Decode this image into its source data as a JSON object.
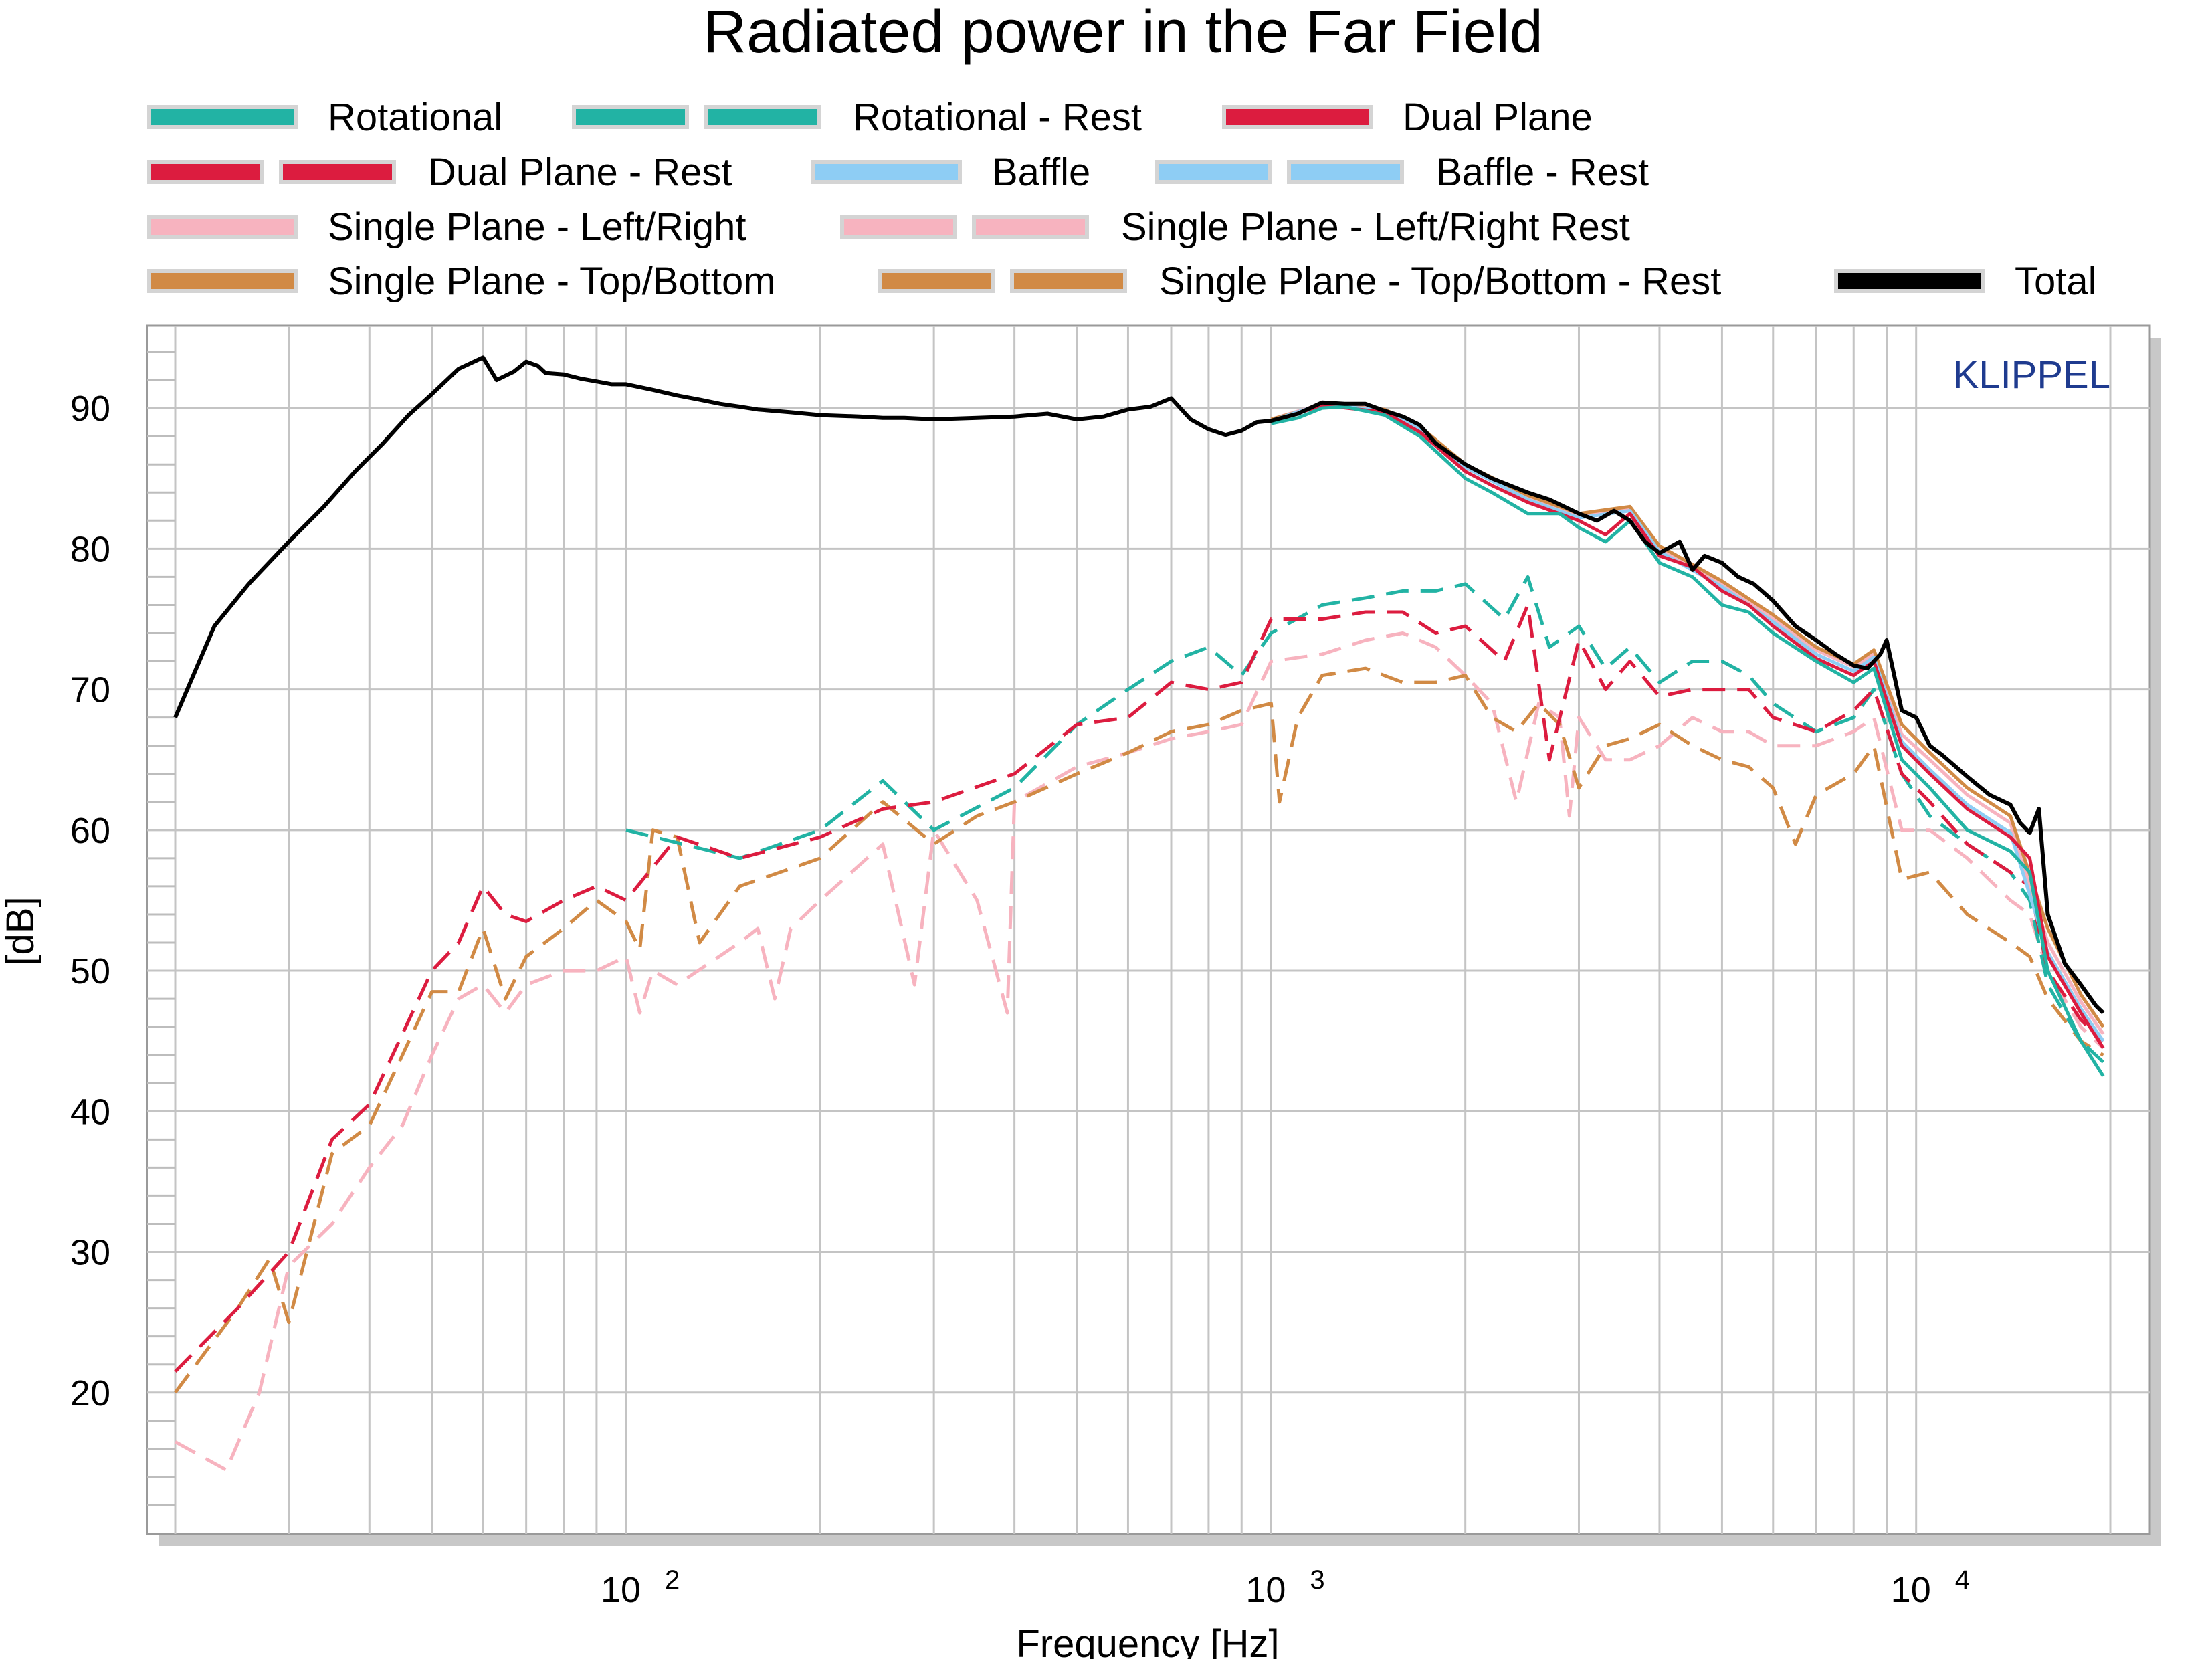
{
  "chart_data": {
    "type": "line",
    "title": "Radiated power in the Far Field",
    "xlabel": "Frequency [Hz]",
    "ylabel": "[dB]",
    "x_scale": "log",
    "xlim": [
      20,
      20000
    ],
    "ylim": [
      10,
      95
    ],
    "y_ticks": [
      20,
      30,
      40,
      50,
      60,
      70,
      80,
      90
    ],
    "x_ticks": [
      {
        "value": 100,
        "base": "10",
        "exp": "2"
      },
      {
        "value": 1000,
        "base": "10",
        "exp": "3"
      },
      {
        "value": 10000,
        "base": "10",
        "exp": "4"
      }
    ],
    "grid": true,
    "legend_placement": "top",
    "brand": "KLIPPEL",
    "brand_color": "#1f3b8f",
    "series": [
      {
        "name": "Rotational",
        "color": "#22b3a4",
        "dashed": false,
        "style": "double-swatch-none",
        "x": [
          1000,
          1100,
          1200,
          1300,
          1500,
          1700,
          2000,
          2200,
          2500,
          2800,
          3000,
          3300,
          3600,
          4000,
          4500,
          5000,
          5500,
          6000,
          7000,
          8000,
          8600,
          9500,
          10500,
          12000,
          14000,
          15000,
          16000,
          18000,
          19500
        ],
        "y": [
          88.9,
          89.3,
          90.0,
          90.1,
          89.5,
          88.0,
          85.0,
          84.0,
          82.5,
          82.5,
          81.5,
          80.5,
          82.0,
          79.0,
          78.0,
          76.0,
          75.5,
          74.0,
          72.0,
          70.5,
          71.5,
          65.0,
          63.0,
          60.0,
          58.5,
          57.0,
          50.0,
          45.0,
          42.5
        ]
      },
      {
        "name": "Rotational - Rest",
        "color": "#22b3a4",
        "dashed": true,
        "x": [
          100,
          150,
          200,
          250,
          300,
          400,
          500,
          600,
          700,
          800,
          900,
          1000,
          1200,
          1400,
          1600,
          1800,
          2000,
          2300,
          2500,
          2700,
          3000,
          3300,
          3600,
          4000,
          4500,
          5000,
          5500,
          6000,
          7000,
          8000,
          8600,
          9500,
          10500,
          12000,
          14000,
          15000,
          16000,
          18000,
          19500
        ],
        "y": [
          60.0,
          58.0,
          60.0,
          63.5,
          60.0,
          63.0,
          67.5,
          70.0,
          72.0,
          73.0,
          71.0,
          74.0,
          76.0,
          76.5,
          77.0,
          77.0,
          77.5,
          75.0,
          78.0,
          73.0,
          74.5,
          71.5,
          73.0,
          70.5,
          72.0,
          72.0,
          71.0,
          69.0,
          67.0,
          68.0,
          70.0,
          64.0,
          61.0,
          59.0,
          57.0,
          55.0,
          49.0,
          45.0,
          43.5
        ]
      },
      {
        "name": "Dual Plane",
        "color": "#dc1c3f",
        "dashed": false,
        "x": [
          1000,
          1200,
          1500,
          1700,
          2000,
          2200,
          2500,
          3000,
          3300,
          3600,
          4000,
          4500,
          5000,
          5500,
          6000,
          7000,
          8000,
          8600,
          9500,
          10500,
          12000,
          14000,
          15000,
          16000,
          18000,
          19500
        ],
        "y": [
          89.0,
          90.2,
          89.7,
          88.3,
          85.5,
          84.5,
          83.3,
          82.0,
          81.0,
          82.5,
          79.5,
          78.7,
          77.0,
          76.0,
          74.5,
          72.2,
          71.0,
          72.0,
          66.0,
          64.0,
          61.5,
          59.5,
          58.0,
          51.0,
          47.0,
          44.5
        ]
      },
      {
        "name": "Dual Plane - Rest",
        "color": "#dc1c3f",
        "dashed": true,
        "x": [
          20,
          25,
          30,
          35,
          40,
          45,
          50,
          55,
          60,
          65,
          70,
          80,
          90,
          100,
          120,
          150,
          200,
          250,
          300,
          400,
          500,
          600,
          700,
          800,
          900,
          1000,
          1200,
          1400,
          1600,
          1800,
          2000,
          2300,
          2500,
          2700,
          3000,
          3300,
          3600,
          4000,
          4500,
          5000,
          5500,
          6000,
          7000,
          8000,
          8600,
          9500,
          10500,
          12000,
          14000,
          15000,
          16000,
          18000,
          19500
        ],
        "y": [
          21.5,
          26.0,
          30.0,
          38.0,
          40.5,
          45.5,
          50.0,
          52.0,
          56.0,
          54.0,
          53.5,
          55.0,
          56.0,
          55.0,
          59.5,
          58.0,
          59.5,
          61.5,
          62.0,
          64.0,
          67.5,
          68.0,
          70.5,
          70.0,
          70.5,
          75.0,
          75.0,
          75.5,
          75.5,
          74.0,
          74.5,
          72.0,
          76.0,
          65.0,
          73.5,
          70.0,
          72.0,
          69.5,
          70.0,
          70.0,
          70.0,
          68.0,
          67.0,
          68.5,
          70.0,
          64.0,
          62.0,
          59.0,
          57.0,
          56.0,
          50.0,
          46.5,
          45.0
        ]
      },
      {
        "name": "Baffle",
        "color": "#8ecdf4",
        "dashed": false,
        "x": [
          1000,
          1200,
          1500,
          1700,
          2000,
          2500,
          3000,
          3600,
          4000,
          5000,
          6000,
          7000,
          8000,
          8600,
          9500,
          10500,
          12000,
          14000,
          16000,
          18000,
          19500
        ],
        "y": [
          89.1,
          90.3,
          89.8,
          88.5,
          85.8,
          83.5,
          82.2,
          82.7,
          79.8,
          77.3,
          74.8,
          72.5,
          71.3,
          72.3,
          66.3,
          64.3,
          61.8,
          59.8,
          51.3,
          47.3,
          45.0
        ]
      },
      {
        "name": "Baffle - Rest",
        "color": "#8ecdf4",
        "dashed": true,
        "x": [],
        "y": []
      },
      {
        "name": "Single Plane - Left/Right",
        "color": "#f7b3bf",
        "dashed": false,
        "x": [
          1000,
          1200,
          1500,
          1700,
          2000,
          2500,
          3000,
          3600,
          4000,
          5000,
          6000,
          7000,
          8000,
          8600,
          9500,
          10500,
          12000,
          14000,
          16000,
          18000,
          19500
        ],
        "y": [
          89.2,
          90.3,
          89.9,
          88.6,
          85.9,
          83.7,
          82.4,
          82.9,
          80.0,
          77.5,
          75.0,
          72.8,
          71.6,
          72.5,
          66.8,
          65.0,
          62.5,
          60.5,
          52.0,
          47.8,
          45.5
        ]
      },
      {
        "name": "Single Plane - Left/Right Rest",
        "color": "#f7b3bf",
        "dashed": true,
        "x": [
          20,
          24,
          27,
          30,
          35,
          40,
          45,
          50,
          55,
          60,
          65,
          70,
          80,
          90,
          100,
          105,
          110,
          120,
          150,
          160,
          170,
          180,
          200,
          250,
          280,
          300,
          350,
          390,
          400,
          500,
          600,
          700,
          800,
          900,
          1000,
          1200,
          1400,
          1600,
          1800,
          2000,
          2200,
          2400,
          2600,
          2800,
          2900,
          3000,
          3300,
          3600,
          4000,
          4500,
          5000,
          5500,
          6000,
          7000,
          8000,
          8600,
          9500,
          10500,
          12000,
          14000,
          15000,
          16000,
          18000,
          19500
        ],
        "y": [
          16.5,
          14.5,
          20.0,
          29.0,
          32.0,
          36.0,
          39.0,
          44.0,
          48.0,
          49.0,
          47.0,
          49.0,
          50.0,
          50.0,
          51.0,
          47.0,
          50.0,
          49.0,
          52.0,
          53.0,
          48.0,
          53.0,
          55.0,
          59.0,
          49.0,
          60.0,
          55.0,
          47.0,
          62.0,
          64.5,
          65.5,
          66.5,
          67.0,
          67.5,
          72.0,
          72.5,
          73.5,
          74.0,
          73.0,
          71.0,
          69.0,
          62.0,
          69.0,
          68.0,
          61.0,
          68.0,
          65.0,
          65.0,
          66.0,
          68.0,
          67.0,
          67.0,
          66.0,
          66.0,
          67.0,
          68.0,
          60.0,
          60.0,
          58.0,
          55.0,
          54.0,
          50.0,
          46.0,
          44.5
        ]
      },
      {
        "name": "Single Plane - Top/Bottom",
        "color": "#d18a45",
        "dashed": false,
        "x": [
          1000,
          1200,
          1500,
          1700,
          2000,
          2500,
          3000,
          3600,
          4000,
          5000,
          6000,
          7000,
          8000,
          8600,
          9500,
          10500,
          12000,
          14000,
          16000,
          18000,
          19500
        ],
        "y": [
          89.2,
          90.2,
          89.9,
          88.7,
          86.0,
          83.8,
          82.5,
          83.0,
          80.2,
          77.7,
          75.3,
          73.0,
          71.8,
          72.8,
          67.5,
          65.5,
          63.0,
          61.0,
          53.0,
          48.3,
          46.0
        ]
      },
      {
        "name": "Single Plane - Top/Bottom - Rest",
        "color": "#d18a45",
        "dashed": true,
        "x": [
          20,
          25,
          28,
          30,
          35,
          40,
          45,
          50,
          55,
          60,
          65,
          70,
          80,
          90,
          100,
          105,
          110,
          120,
          130,
          150,
          200,
          250,
          300,
          350,
          400,
          500,
          600,
          700,
          800,
          900,
          1000,
          1030,
          1100,
          1200,
          1400,
          1600,
          1800,
          2000,
          2200,
          2400,
          2600,
          2800,
          3000,
          3300,
          3600,
          4000,
          4500,
          5000,
          5500,
          6000,
          6500,
          7000,
          8000,
          8600,
          9500,
          10500,
          12000,
          14000,
          15000,
          16000,
          18000,
          19500
        ],
        "y": [
          20.0,
          26.0,
          29.5,
          25.0,
          37.0,
          39.0,
          44.0,
          48.5,
          48.5,
          53.0,
          48.0,
          51.0,
          53.0,
          55.0,
          53.5,
          51.5,
          60.0,
          59.5,
          52.0,
          56.0,
          58.0,
          62.0,
          59.0,
          61.0,
          62.0,
          64.0,
          65.5,
          67.0,
          67.5,
          68.5,
          69.0,
          62.0,
          68.0,
          71.0,
          71.5,
          70.5,
          70.5,
          71.0,
          68.0,
          67.0,
          69.0,
          67.5,
          63.0,
          66.0,
          66.5,
          67.5,
          66.0,
          65.0,
          64.5,
          63.0,
          59.0,
          62.5,
          64.0,
          66.0,
          56.5,
          57.0,
          54.0,
          52.0,
          51.0,
          48.0,
          45.0,
          44.0
        ]
      },
      {
        "name": "Total",
        "color": "#000000",
        "dashed": false,
        "x": [
          20,
          23,
          26,
          30,
          34,
          38,
          42,
          46,
          50,
          55,
          60,
          63,
          67,
          70,
          73,
          75,
          80,
          85,
          90,
          95,
          100,
          110,
          120,
          130,
          140,
          150,
          160,
          180,
          200,
          230,
          250,
          270,
          300,
          350,
          400,
          450,
          500,
          550,
          600,
          650,
          700,
          750,
          800,
          850,
          900,
          950,
          1000,
          1100,
          1200,
          1300,
          1400,
          1500,
          1600,
          1700,
          1800,
          2000,
          2200,
          2500,
          2700,
          3000,
          3200,
          3400,
          3600,
          3800,
          4000,
          4300,
          4500,
          4700,
          5000,
          5300,
          5600,
          6000,
          6500,
          7000,
          7500,
          8000,
          8400,
          8600,
          8800,
          9000,
          9500,
          10000,
          10500,
          11000,
          12000,
          13000,
          14000,
          14500,
          15000,
          15500,
          16000,
          17000,
          18000,
          19000,
          19500
        ],
        "y": [
          68.0,
          74.5,
          77.5,
          80.5,
          83.0,
          85.5,
          87.5,
          89.5,
          91.0,
          92.8,
          93.6,
          92.0,
          92.6,
          93.3,
          93.0,
          92.5,
          92.4,
          92.1,
          91.9,
          91.7,
          91.7,
          91.3,
          90.9,
          90.6,
          90.3,
          90.1,
          89.9,
          89.7,
          89.5,
          89.4,
          89.3,
          89.3,
          89.2,
          89.3,
          89.4,
          89.6,
          89.2,
          89.4,
          89.9,
          90.1,
          90.7,
          89.2,
          88.5,
          88.1,
          88.4,
          89.0,
          89.1,
          89.6,
          90.4,
          90.3,
          90.3,
          89.8,
          89.4,
          88.8,
          87.5,
          86.0,
          85.0,
          84.0,
          83.5,
          82.5,
          82.0,
          82.7,
          82.0,
          80.5,
          79.7,
          80.5,
          78.5,
          79.5,
          79.0,
          78.0,
          77.5,
          76.3,
          74.5,
          73.5,
          72.5,
          71.7,
          71.5,
          72.0,
          72.5,
          73.5,
          68.5,
          68.0,
          66.0,
          65.3,
          63.8,
          62.5,
          61.8,
          60.5,
          59.8,
          61.5,
          54.0,
          50.5,
          49.0,
          47.5,
          47.0
        ]
      }
    ]
  }
}
